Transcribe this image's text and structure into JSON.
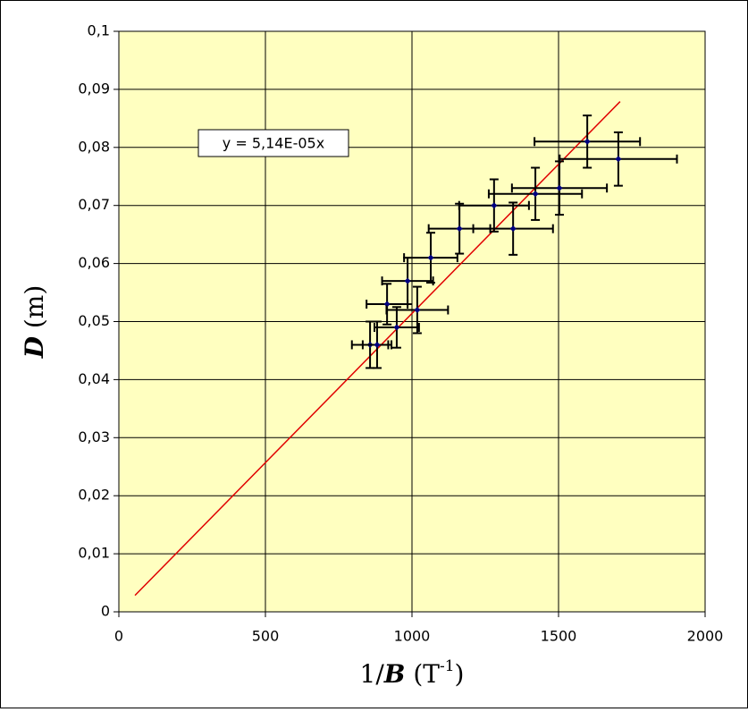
{
  "chart_data": {
    "type": "scatter",
    "x_label": [
      "1/",
      "B",
      " (T",
      "-1",
      ")"
    ],
    "y_label": [
      "D",
      " (m)"
    ],
    "series": [
      {
        "color": "#000080",
        "error_color": "#000000",
        "x": [
          857,
          881,
          948,
          915,
          1018,
          985,
          1064,
          1162,
          1280,
          1345,
          1421,
          1503,
          1598,
          1704
        ],
        "values": [
          0.046,
          0.046,
          0.049,
          0.053,
          0.052,
          0.057,
          0.061,
          0.066,
          0.07,
          0.066,
          0.072,
          0.073,
          0.081,
          0.078
        ],
        "xerr": [
          62,
          49,
          76,
          70,
          105,
          87,
          91,
          105,
          119,
          136,
          159,
          162,
          180,
          200
        ],
        "yerr": [
          0.004,
          0.004,
          0.0035,
          0.0035,
          0.004,
          0.004,
          0.0043,
          0.0043,
          0.0045,
          0.0045,
          0.0045,
          0.0046,
          0.0045,
          0.0046
        ]
      }
    ],
    "trendline": {
      "slope": 5.14e-05,
      "xrange": [
        55,
        1710
      ],
      "color": "#e00000",
      "label": "y = 5,14E-05x"
    },
    "xlim": [
      0,
      2000
    ],
    "xticks": [
      0,
      500,
      1000,
      1500,
      2000
    ],
    "ylim": [
      0,
      0.1
    ],
    "yticks": [
      0,
      {
        "value": 0.01,
        "label": "0,01"
      },
      {
        "value": 0.02,
        "label": "0,02"
      },
      {
        "value": 0.03,
        "label": "0,03"
      },
      {
        "value": 0.04,
        "label": "0,04"
      },
      {
        "value": 0.05,
        "label": "0,05"
      },
      {
        "value": 0.06,
        "label": "0,06"
      },
      {
        "value": 0.07,
        "label": "0,07"
      },
      {
        "value": 0.08,
        "label": "0,08"
      },
      {
        "value": 0.09,
        "label": "0,09"
      },
      {
        "value": 0.1,
        "label": "0,1"
      }
    ],
    "grid": true,
    "plot_background": "#ffffc0"
  }
}
